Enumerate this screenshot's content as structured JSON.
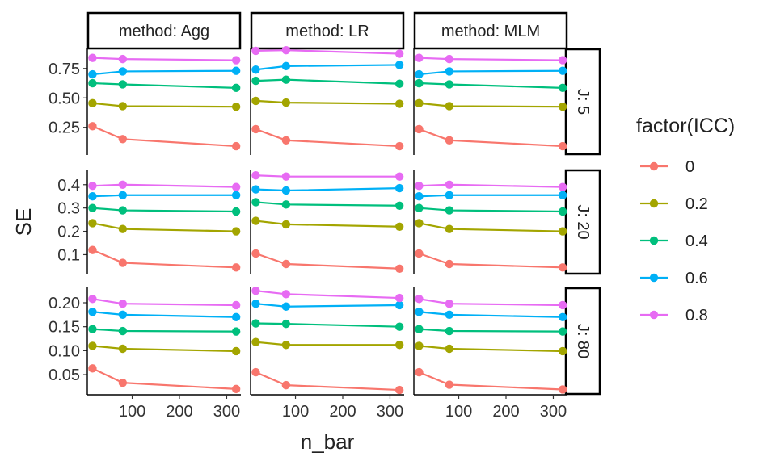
{
  "chart_data": {
    "type": "line",
    "xlabel": "n_bar",
    "ylabel": "SE",
    "x": [
      16,
      80,
      320
    ],
    "xlim": [
      5,
      330
    ],
    "xticks": [
      100,
      200,
      300
    ],
    "x_tick_labels": [
      "100",
      "200",
      "300"
    ],
    "grid": false,
    "legend": {
      "title": "factor(ICC)",
      "position": "right",
      "entries": [
        {
          "label": "0",
          "color": "#F8766D"
        },
        {
          "label": "0.2",
          "color": "#A3A500"
        },
        {
          "label": "0.4",
          "color": "#00BF7D"
        },
        {
          "label": "0.6",
          "color": "#00B0F6"
        },
        {
          "label": "0.8",
          "color": "#E76BF3"
        }
      ]
    },
    "columns": [
      "method: Agg",
      "method: LR",
      "method: MLM"
    ],
    "rows": [
      {
        "label": "J: 5",
        "ylim": [
          0.015,
          0.92
        ],
        "yticks": [
          0.25,
          0.5,
          0.75
        ],
        "y_tick_labels": [
          "0.25",
          "0.50",
          "0.75"
        ],
        "panels": [
          {
            "series": [
              {
                "name": "0",
                "values": [
                  0.26,
                  0.15,
                  0.09
                ]
              },
              {
                "name": "0.2",
                "values": [
                  0.455,
                  0.43,
                  0.425
                ]
              },
              {
                "name": "0.4",
                "values": [
                  0.625,
                  0.615,
                  0.585
                ]
              },
              {
                "name": "0.6",
                "values": [
                  0.7,
                  0.725,
                  0.73
                ]
              },
              {
                "name": "0.8",
                "values": [
                  0.84,
                  0.83,
                  0.82
                ]
              }
            ]
          },
          {
            "series": [
              {
                "name": "0",
                "values": [
                  0.235,
                  0.14,
                  0.09
                ]
              },
              {
                "name": "0.2",
                "values": [
                  0.475,
                  0.46,
                  0.45
                ]
              },
              {
                "name": "0.4",
                "values": [
                  0.645,
                  0.655,
                  0.62
                ]
              },
              {
                "name": "0.6",
                "values": [
                  0.74,
                  0.77,
                  0.78
                ]
              },
              {
                "name": "0.8",
                "values": [
                  0.9,
                  0.905,
                  0.875
                ]
              }
            ]
          },
          {
            "series": [
              {
                "name": "0",
                "values": [
                  0.235,
                  0.14,
                  0.09
                ]
              },
              {
                "name": "0.2",
                "values": [
                  0.455,
                  0.43,
                  0.425
                ]
              },
              {
                "name": "0.4",
                "values": [
                  0.625,
                  0.615,
                  0.585
                ]
              },
              {
                "name": "0.6",
                "values": [
                  0.7,
                  0.725,
                  0.73
                ]
              },
              {
                "name": "0.8",
                "values": [
                  0.84,
                  0.83,
                  0.82
                ]
              }
            ]
          }
        ]
      },
      {
        "label": "J: 20",
        "ylim": [
          0.015,
          0.465
        ],
        "yticks": [
          0.1,
          0.2,
          0.3,
          0.4
        ],
        "y_tick_labels": [
          "0.1",
          "0.2",
          "0.3",
          "0.4"
        ],
        "panels": [
          {
            "series": [
              {
                "name": "0",
                "values": [
                  0.12,
                  0.065,
                  0.045
                ]
              },
              {
                "name": "0.2",
                "values": [
                  0.235,
                  0.21,
                  0.2
                ]
              },
              {
                "name": "0.4",
                "values": [
                  0.3,
                  0.29,
                  0.285
                ]
              },
              {
                "name": "0.6",
                "values": [
                  0.35,
                  0.355,
                  0.355
                ]
              },
              {
                "name": "0.8",
                "values": [
                  0.395,
                  0.4,
                  0.39
                ]
              }
            ]
          },
          {
            "series": [
              {
                "name": "0",
                "values": [
                  0.105,
                  0.06,
                  0.04
                ]
              },
              {
                "name": "0.2",
                "values": [
                  0.245,
                  0.23,
                  0.22
                ]
              },
              {
                "name": "0.4",
                "values": [
                  0.325,
                  0.315,
                  0.31
                ]
              },
              {
                "name": "0.6",
                "values": [
                  0.38,
                  0.375,
                  0.385
                ]
              },
              {
                "name": "0.8",
                "values": [
                  0.44,
                  0.435,
                  0.435
                ]
              }
            ]
          },
          {
            "series": [
              {
                "name": "0",
                "values": [
                  0.105,
                  0.06,
                  0.045
                ]
              },
              {
                "name": "0.2",
                "values": [
                  0.235,
                  0.21,
                  0.2
                ]
              },
              {
                "name": "0.4",
                "values": [
                  0.3,
                  0.29,
                  0.285
                ]
              },
              {
                "name": "0.6",
                "values": [
                  0.35,
                  0.355,
                  0.355
                ]
              },
              {
                "name": "0.8",
                "values": [
                  0.395,
                  0.4,
                  0.39
                ]
              }
            ]
          }
        ]
      },
      {
        "label": "J: 80",
        "ylim": [
          0.008,
          0.232
        ],
        "yticks": [
          0.05,
          0.1,
          0.15,
          0.2
        ],
        "y_tick_labels": [
          "0.05",
          "0.10",
          "0.15",
          "0.20"
        ],
        "panels": [
          {
            "series": [
              {
                "name": "0",
                "values": [
                  0.063,
                  0.033,
                  0.02
                ]
              },
              {
                "name": "0.2",
                "values": [
                  0.11,
                  0.104,
                  0.099
                ]
              },
              {
                "name": "0.4",
                "values": [
                  0.145,
                  0.141,
                  0.14
                ]
              },
              {
                "name": "0.6",
                "values": [
                  0.181,
                  0.175,
                  0.17
                ]
              },
              {
                "name": "0.8",
                "values": [
                  0.208,
                  0.198,
                  0.195
                ]
              }
            ]
          },
          {
            "series": [
              {
                "name": "0",
                "values": [
                  0.055,
                  0.028,
                  0.018
                ]
              },
              {
                "name": "0.2",
                "values": [
                  0.118,
                  0.112,
                  0.112
                ]
              },
              {
                "name": "0.4",
                "values": [
                  0.157,
                  0.156,
                  0.15
                ]
              },
              {
                "name": "0.6",
                "values": [
                  0.198,
                  0.192,
                  0.195
                ]
              },
              {
                "name": "0.8",
                "values": [
                  0.225,
                  0.218,
                  0.21
                ]
              }
            ]
          },
          {
            "series": [
              {
                "name": "0",
                "values": [
                  0.055,
                  0.029,
                  0.019
                ]
              },
              {
                "name": "0.2",
                "values": [
                  0.11,
                  0.104,
                  0.099
                ]
              },
              {
                "name": "0.4",
                "values": [
                  0.145,
                  0.141,
                  0.14
                ]
              },
              {
                "name": "0.6",
                "values": [
                  0.181,
                  0.175,
                  0.17
                ]
              },
              {
                "name": "0.8",
                "values": [
                  0.208,
                  0.198,
                  0.195
                ]
              }
            ]
          }
        ]
      }
    ]
  }
}
